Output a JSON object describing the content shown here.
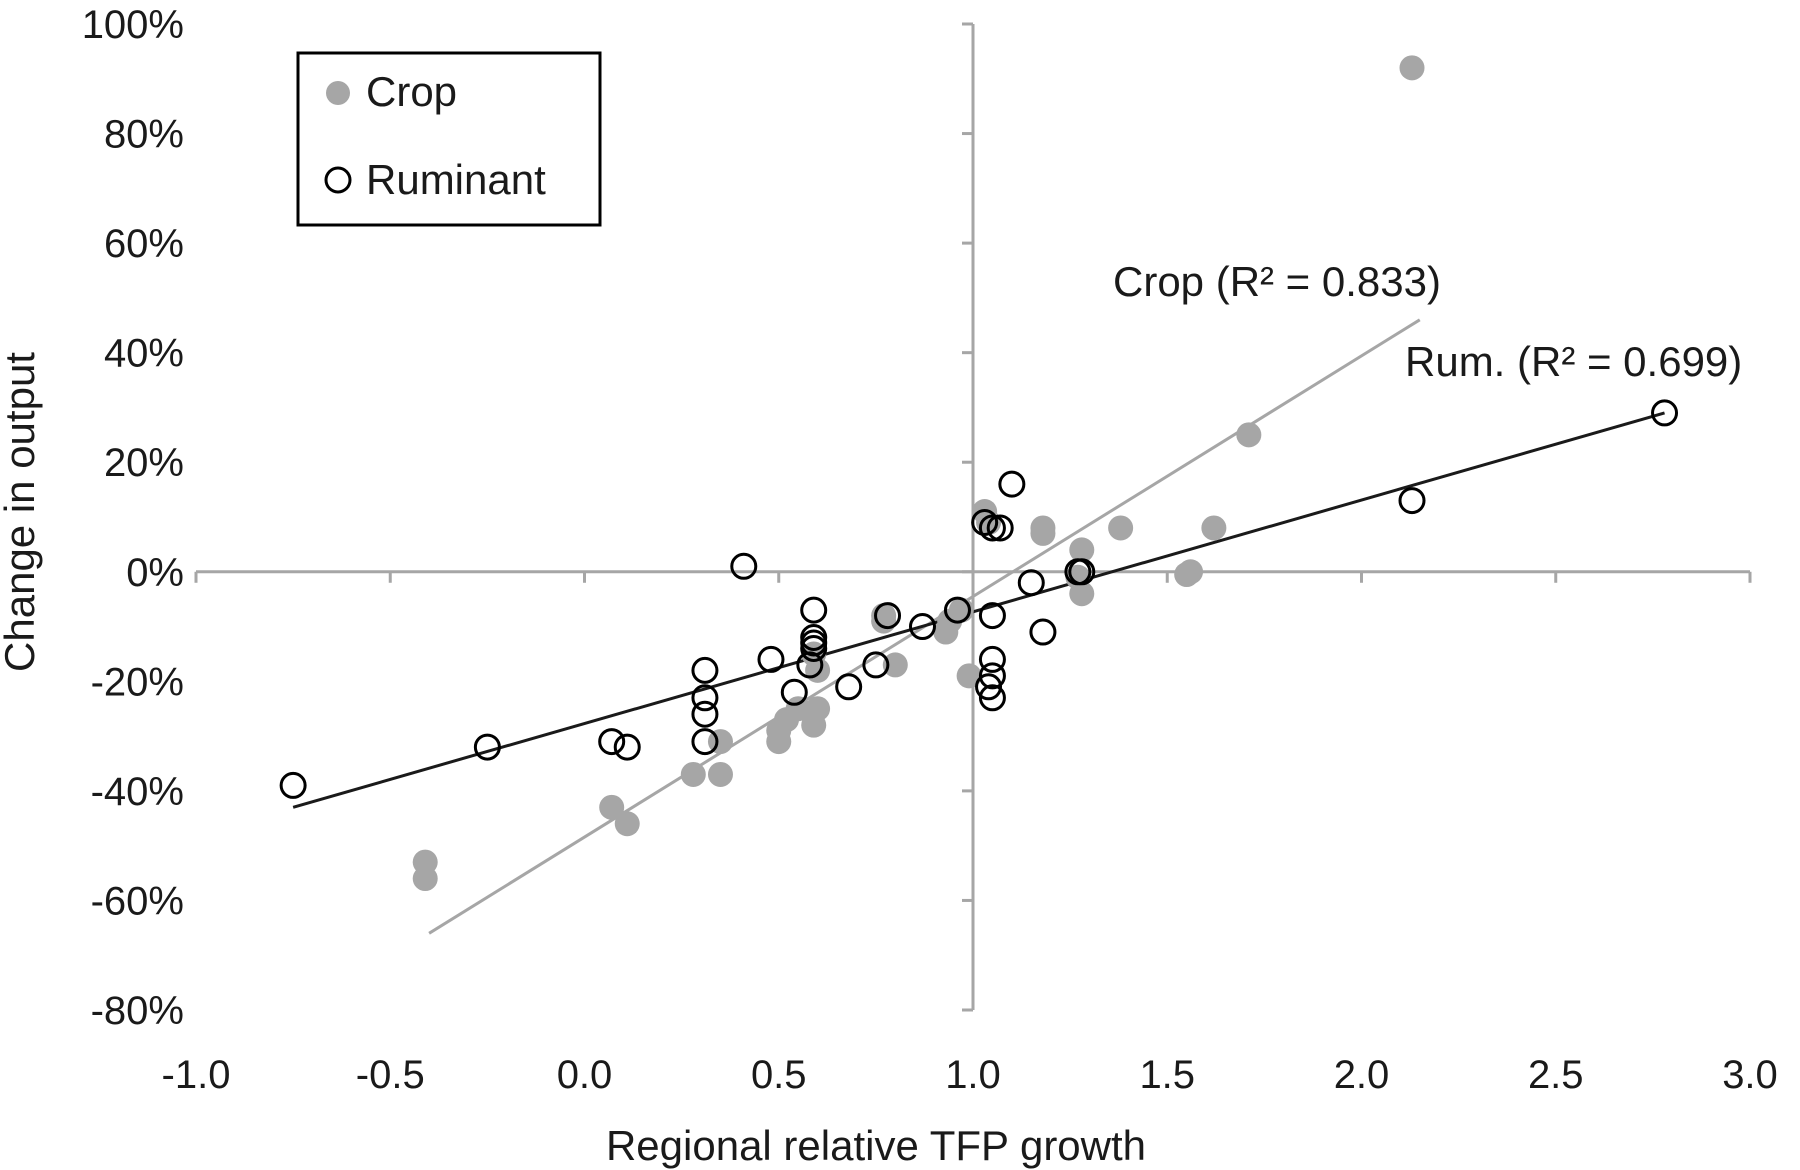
{
  "chart_data": {
    "type": "scatter",
    "title": "",
    "xlabel": "Regional relative TFP growth",
    "ylabel": "Change in output",
    "xlim": [
      -1.0,
      3.0
    ],
    "ylim": [
      -80,
      100
    ],
    "x_ticks": [
      -1.0,
      -0.5,
      0.0,
      0.5,
      1.0,
      1.5,
      2.0,
      2.5,
      3.0
    ],
    "x_tick_labels": [
      "-1.0",
      "-0.5",
      "0.0",
      "0.5",
      "1.0",
      "1.5",
      "2.0",
      "2.5",
      "3.0"
    ],
    "y_ticks": [
      -80,
      -60,
      -40,
      -20,
      0,
      20,
      40,
      60,
      80,
      100
    ],
    "y_tick_labels": [
      "-80%",
      "-60%",
      "-40%",
      "-20%",
      "0%",
      "20%",
      "40%",
      "60%",
      "80%",
      "100%"
    ],
    "y_axis_at_x": 1.0,
    "x_axis_at_y": 0,
    "grid": false,
    "legend_position": "top-left",
    "legend": [
      "Crop",
      "Ruminant"
    ],
    "colors": {
      "crop": "#a6a6a6",
      "ruminant": "#000000",
      "crop_line": "#a6a6a6",
      "rum_line": "#1a1a1a",
      "axis": "#a6a6a6"
    },
    "series": [
      {
        "name": "Crop",
        "marker": "filled-circle",
        "points": [
          [
            2.13,
            92
          ],
          [
            1.71,
            25
          ],
          [
            1.62,
            8
          ],
          [
            1.38,
            8
          ],
          [
            1.56,
            0
          ],
          [
            1.55,
            -0.5
          ],
          [
            1.28,
            4
          ],
          [
            1.28,
            -4
          ],
          [
            1.27,
            -1
          ],
          [
            1.18,
            8
          ],
          [
            1.18,
            7
          ],
          [
            1.03,
            11
          ],
          [
            1.04,
            9
          ],
          [
            0.99,
            -19
          ],
          [
            0.93,
            -11
          ],
          [
            0.94,
            -9
          ],
          [
            0.97,
            -7
          ],
          [
            0.8,
            -17
          ],
          [
            0.77,
            -9
          ],
          [
            0.77,
            -8
          ],
          [
            0.6,
            -18
          ],
          [
            0.59,
            -15
          ],
          [
            0.6,
            -25
          ],
          [
            0.59,
            -28
          ],
          [
            0.55,
            -25
          ],
          [
            0.5,
            -31
          ],
          [
            0.5,
            -29
          ],
          [
            0.52,
            -27
          ],
          [
            0.35,
            -31
          ],
          [
            0.35,
            -37
          ],
          [
            0.28,
            -37
          ],
          [
            0.11,
            -46
          ],
          [
            0.07,
            -43
          ],
          [
            -0.41,
            -53
          ],
          [
            -0.41,
            -56
          ]
        ]
      },
      {
        "name": "Ruminant",
        "marker": "open-circle",
        "points": [
          [
            2.78,
            29
          ],
          [
            2.13,
            13
          ],
          [
            1.1,
            16
          ],
          [
            1.03,
            9
          ],
          [
            1.05,
            8
          ],
          [
            1.07,
            8
          ],
          [
            1.15,
            -2
          ],
          [
            1.28,
            0
          ],
          [
            1.27,
            0
          ],
          [
            1.18,
            -11
          ],
          [
            1.05,
            -8
          ],
          [
            1.05,
            -16
          ],
          [
            1.05,
            -19
          ],
          [
            1.04,
            -21
          ],
          [
            1.05,
            -23
          ],
          [
            0.96,
            -7
          ],
          [
            0.87,
            -10
          ],
          [
            0.78,
            -8
          ],
          [
            0.75,
            -17
          ],
          [
            0.68,
            -21
          ],
          [
            0.59,
            -7
          ],
          [
            0.59,
            -12
          ],
          [
            0.59,
            -13
          ],
          [
            0.59,
            -14
          ],
          [
            0.58,
            -17
          ],
          [
            0.54,
            -22
          ],
          [
            0.48,
            -16
          ],
          [
            0.41,
            1
          ],
          [
            0.31,
            -18
          ],
          [
            0.31,
            -23
          ],
          [
            0.31,
            -26
          ],
          [
            0.31,
            -31
          ],
          [
            0.11,
            -32
          ],
          [
            0.07,
            -31
          ],
          [
            -0.25,
            -32
          ],
          [
            -0.75,
            -39
          ]
        ]
      }
    ],
    "trendlines": [
      {
        "name": "Crop",
        "label": "Crop (R² = 0.833)",
        "x": [
          -0.4,
          2.15
        ],
        "y": [
          -66,
          46
        ],
        "r2": 0.833
      },
      {
        "name": "Ruminant",
        "label": "Rum. (R² = 0.699)",
        "x": [
          -0.75,
          2.78
        ],
        "y": [
          -43,
          29
        ],
        "r2": 0.699
      }
    ]
  }
}
